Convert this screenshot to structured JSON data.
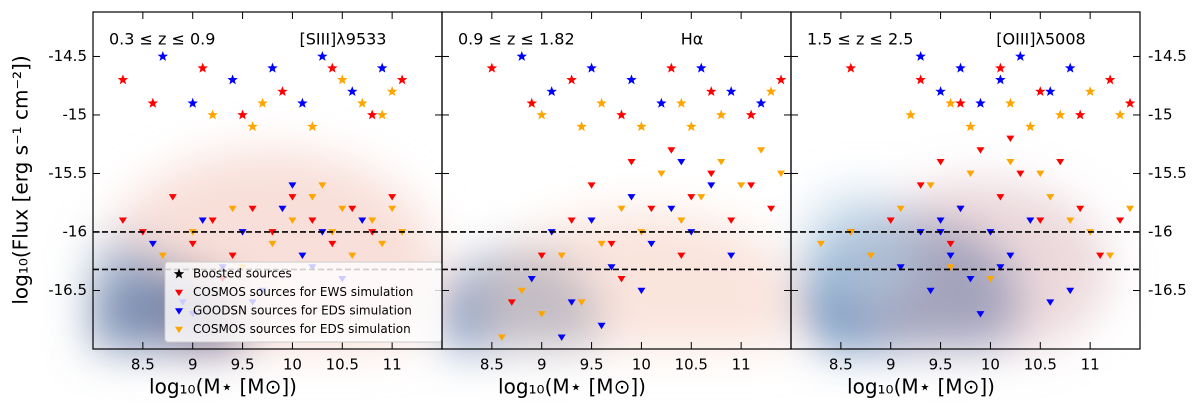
{
  "y_label": "log₁₀(Flux [erg s⁻¹ cm⁻²])",
  "chart_data": [
    {
      "type": "scatter",
      "annotations": [
        "0.3 ≤ z ≤ 0.9",
        "[SIII]λ9533"
      ],
      "x_label": "log₁₀(M⋆ [M⊙])",
      "xlim": [
        8,
        11.5
      ],
      "ylim": [
        -17,
        -14.12
      ],
      "xticks": [
        8.5,
        9,
        9.5,
        10,
        10.5,
        11
      ],
      "yticks": [
        -14.5,
        -15,
        -15.5,
        -16,
        -16.5
      ],
      "hlines": [
        -16,
        -16.32
      ],
      "ytick_side": "left",
      "legend_position": "lower left",
      "legend": [
        {
          "name": "Boosted sources",
          "color": "#000000",
          "marker": "star"
        },
        {
          "name": "COSMOS sources for EWS simulation",
          "color": "#ff0000",
          "marker": "triangle"
        },
        {
          "name": "GOODSN sources for EDS simulation",
          "color": "#0000ff",
          "marker": "triangle"
        },
        {
          "name": "COSMOS sources for EDS simulation",
          "color": "#ffa500",
          "marker": "triangle"
        }
      ],
      "series": [
        {
          "color": "#ff0000",
          "marker": "star",
          "x": [
            8.3,
            8.6,
            9.1,
            9.5,
            9.9,
            10.4,
            10.8,
            11.1
          ],
          "y": [
            -14.7,
            -14.9,
            -14.6,
            -15.0,
            -14.8,
            -14.6,
            -15.0,
            -14.7
          ]
        },
        {
          "color": "#0000ff",
          "marker": "star",
          "x": [
            8.7,
            9.0,
            9.4,
            9.8,
            10.1,
            10.3,
            10.6,
            10.9
          ],
          "y": [
            -14.5,
            -14.9,
            -14.7,
            -14.6,
            -14.9,
            -14.5,
            -14.8,
            -14.6
          ]
        },
        {
          "color": "#ffa500",
          "marker": "star",
          "x": [
            9.2,
            9.7,
            10.2,
            10.5,
            10.9,
            11.0,
            9.6,
            10.7
          ],
          "y": [
            -15.0,
            -14.9,
            -15.1,
            -14.7,
            -15.0,
            -14.8,
            -15.1,
            -14.9
          ]
        },
        {
          "color": "#ff0000",
          "marker": "triangle",
          "x": [
            8.3,
            8.5,
            8.8,
            9.0,
            9.2,
            9.4,
            9.6,
            9.8,
            10.0,
            10.2,
            10.4,
            10.6,
            10.8,
            11.0,
            9.3
          ],
          "y": [
            -15.9,
            -16.0,
            -15.7,
            -16.1,
            -15.9,
            -16.2,
            -15.8,
            -16.0,
            -15.7,
            -15.9,
            -16.1,
            -15.8,
            -16.0,
            -15.7,
            -16.4
          ]
        },
        {
          "color": "#0000ff",
          "marker": "triangle",
          "x": [
            8.6,
            8.9,
            9.1,
            9.3,
            9.5,
            9.7,
            9.9,
            10.1,
            10.3,
            10.5,
            10.7,
            9.0,
            9.6,
            10.2,
            10.0
          ],
          "y": [
            -16.1,
            -16.6,
            -15.9,
            -16.3,
            -16.0,
            -16.5,
            -15.8,
            -16.2,
            -16.0,
            -16.4,
            -15.9,
            -16.7,
            -16.6,
            -16.3,
            -15.6
          ]
        },
        {
          "color": "#ffa500",
          "marker": "triangle",
          "x": [
            9.0,
            9.4,
            9.8,
            10.0,
            10.2,
            10.4,
            10.5,
            10.6,
            10.8,
            10.9,
            11.0,
            11.1,
            8.7,
            9.5,
            10.3
          ],
          "y": [
            -16.0,
            -15.8,
            -16.1,
            -15.9,
            -15.7,
            -16.0,
            -15.8,
            -16.2,
            -15.9,
            -16.1,
            -15.8,
            -16.0,
            -16.2,
            -16.3,
            -15.6
          ]
        }
      ]
    },
    {
      "type": "scatter",
      "annotations": [
        "0.9 ≤ z ≤ 1.82",
        "Hα"
      ],
      "x_label": "log₁₀(M⋆ [M⊙])",
      "xlim": [
        8,
        11.5
      ],
      "ylim": [
        -17,
        -14.12
      ],
      "xticks": [
        8.5,
        9,
        9.5,
        10,
        10.5,
        11
      ],
      "hlines": [
        -16,
        -16.32
      ],
      "series": [
        {
          "color": "#ff0000",
          "marker": "star",
          "x": [
            8.5,
            8.9,
            9.3,
            9.8,
            10.3,
            10.7,
            11.1,
            11.4
          ],
          "y": [
            -14.6,
            -14.9,
            -14.7,
            -15.0,
            -14.6,
            -14.8,
            -15.0,
            -14.7
          ]
        },
        {
          "color": "#0000ff",
          "marker": "star",
          "x": [
            8.8,
            9.1,
            9.5,
            9.9,
            10.2,
            10.6,
            10.9,
            11.2
          ],
          "y": [
            -14.5,
            -14.8,
            -14.6,
            -14.7,
            -14.9,
            -14.6,
            -14.8,
            -14.9
          ]
        },
        {
          "color": "#ffa500",
          "marker": "star",
          "x": [
            9.0,
            9.6,
            10.0,
            10.4,
            10.8,
            11.3,
            9.4,
            10.5
          ],
          "y": [
            -15.0,
            -14.9,
            -15.1,
            -14.9,
            -15.0,
            -14.8,
            -15.1,
            -15.1
          ]
        },
        {
          "color": "#ff0000",
          "marker": "triangle",
          "x": [
            8.7,
            9.0,
            9.3,
            9.5,
            9.7,
            9.9,
            10.1,
            10.3,
            10.5,
            10.7,
            10.9,
            11.1,
            11.3,
            9.8,
            10.4
          ],
          "y": [
            -16.6,
            -16.2,
            -15.9,
            -15.6,
            -16.1,
            -15.4,
            -15.8,
            -15.3,
            -15.7,
            -15.5,
            -15.9,
            -15.6,
            -15.8,
            -16.4,
            -16.2
          ]
        },
        {
          "color": "#0000ff",
          "marker": "triangle",
          "x": [
            8.9,
            9.1,
            9.3,
            9.5,
            9.7,
            9.9,
            10.1,
            10.3,
            10.5,
            10.7,
            10.9,
            9.6,
            10.0,
            10.4,
            9.2
          ],
          "y": [
            -16.4,
            -16.0,
            -16.6,
            -15.9,
            -16.3,
            -15.7,
            -16.1,
            -15.8,
            -16.0,
            -15.6,
            -16.2,
            -16.8,
            -16.5,
            -15.4,
            -16.9
          ]
        },
        {
          "color": "#ffa500",
          "marker": "triangle",
          "x": [
            8.6,
            8.8,
            9.2,
            9.4,
            9.8,
            10.0,
            10.2,
            10.6,
            10.8,
            11.0,
            11.2,
            11.4,
            9.0,
            9.6,
            10.4
          ],
          "y": [
            -16.9,
            -16.5,
            -16.2,
            -16.6,
            -15.8,
            -16.0,
            -15.5,
            -15.7,
            -15.4,
            -15.6,
            -15.3,
            -15.5,
            -16.7,
            -16.1,
            -15.9
          ]
        }
      ]
    },
    {
      "type": "scatter",
      "annotations": [
        "1.5 ≤ z ≤ 2.5",
        "[OIII]λ5008"
      ],
      "x_label": "log₁₀(M⋆ [M⊙])",
      "xlim": [
        8,
        11.5
      ],
      "ylim": [
        -17,
        -14.12
      ],
      "xticks": [
        8.5,
        9,
        9.5,
        10,
        10.5,
        11
      ],
      "yticks": [
        -14.5,
        -15,
        -15.5,
        -16,
        -16.5
      ],
      "hlines": [
        -16,
        -16.32
      ],
      "ytick_side": "right",
      "series": [
        {
          "color": "#ff0000",
          "marker": "star",
          "x": [
            8.6,
            9.3,
            9.7,
            10.1,
            10.5,
            10.9,
            11.2,
            11.4
          ],
          "y": [
            -14.6,
            -14.7,
            -14.9,
            -14.6,
            -14.8,
            -15.0,
            -14.7,
            -14.9
          ]
        },
        {
          "color": "#0000ff",
          "marker": "star",
          "x": [
            9.3,
            9.5,
            9.7,
            9.9,
            10.1,
            10.3,
            10.6,
            10.8
          ],
          "y": [
            -14.5,
            -14.8,
            -14.6,
            -14.9,
            -14.7,
            -14.5,
            -14.8,
            -14.6
          ]
        },
        {
          "color": "#ffa500",
          "marker": "star",
          "x": [
            9.2,
            9.8,
            10.2,
            10.7,
            11.0,
            11.3,
            10.4,
            9.6
          ],
          "y": [
            -15.0,
            -15.1,
            -14.9,
            -15.0,
            -14.8,
            -15.0,
            -15.1,
            -14.9
          ]
        },
        {
          "color": "#ff0000",
          "marker": "triangle",
          "x": [
            8.6,
            9.0,
            9.3,
            9.5,
            9.7,
            9.9,
            10.1,
            10.3,
            10.5,
            10.7,
            10.9,
            11.1,
            11.3,
            9.6,
            10.2
          ],
          "y": [
            -16.0,
            -15.9,
            -15.6,
            -15.4,
            -15.8,
            -15.3,
            -15.7,
            -15.5,
            -15.9,
            -15.4,
            -15.8,
            -16.2,
            -15.9,
            -16.1,
            -15.2
          ]
        },
        {
          "color": "#0000ff",
          "marker": "triangle",
          "x": [
            9.1,
            9.3,
            9.4,
            9.5,
            9.6,
            9.7,
            9.8,
            10.0,
            10.2,
            10.4,
            10.6,
            9.9,
            10.8,
            9.5,
            10.1
          ],
          "y": [
            -16.3,
            -16.0,
            -16.5,
            -15.9,
            -16.2,
            -15.8,
            -16.4,
            -16.0,
            -16.2,
            -15.9,
            -16.6,
            -16.7,
            -16.5,
            -16.0,
            -16.3
          ]
        },
        {
          "color": "#ffa500",
          "marker": "triangle",
          "x": [
            8.3,
            8.6,
            8.8,
            9.1,
            9.4,
            9.8,
            10.2,
            10.6,
            10.8,
            11.0,
            11.2,
            11.4,
            10.0,
            9.6,
            10.5
          ],
          "y": [
            -16.1,
            -16.0,
            -16.2,
            -15.8,
            -15.6,
            -15.5,
            -15.4,
            -15.7,
            -15.9,
            -16.0,
            -16.2,
            -15.8,
            -16.4,
            -16.3,
            -15.5
          ]
        }
      ]
    }
  ]
}
